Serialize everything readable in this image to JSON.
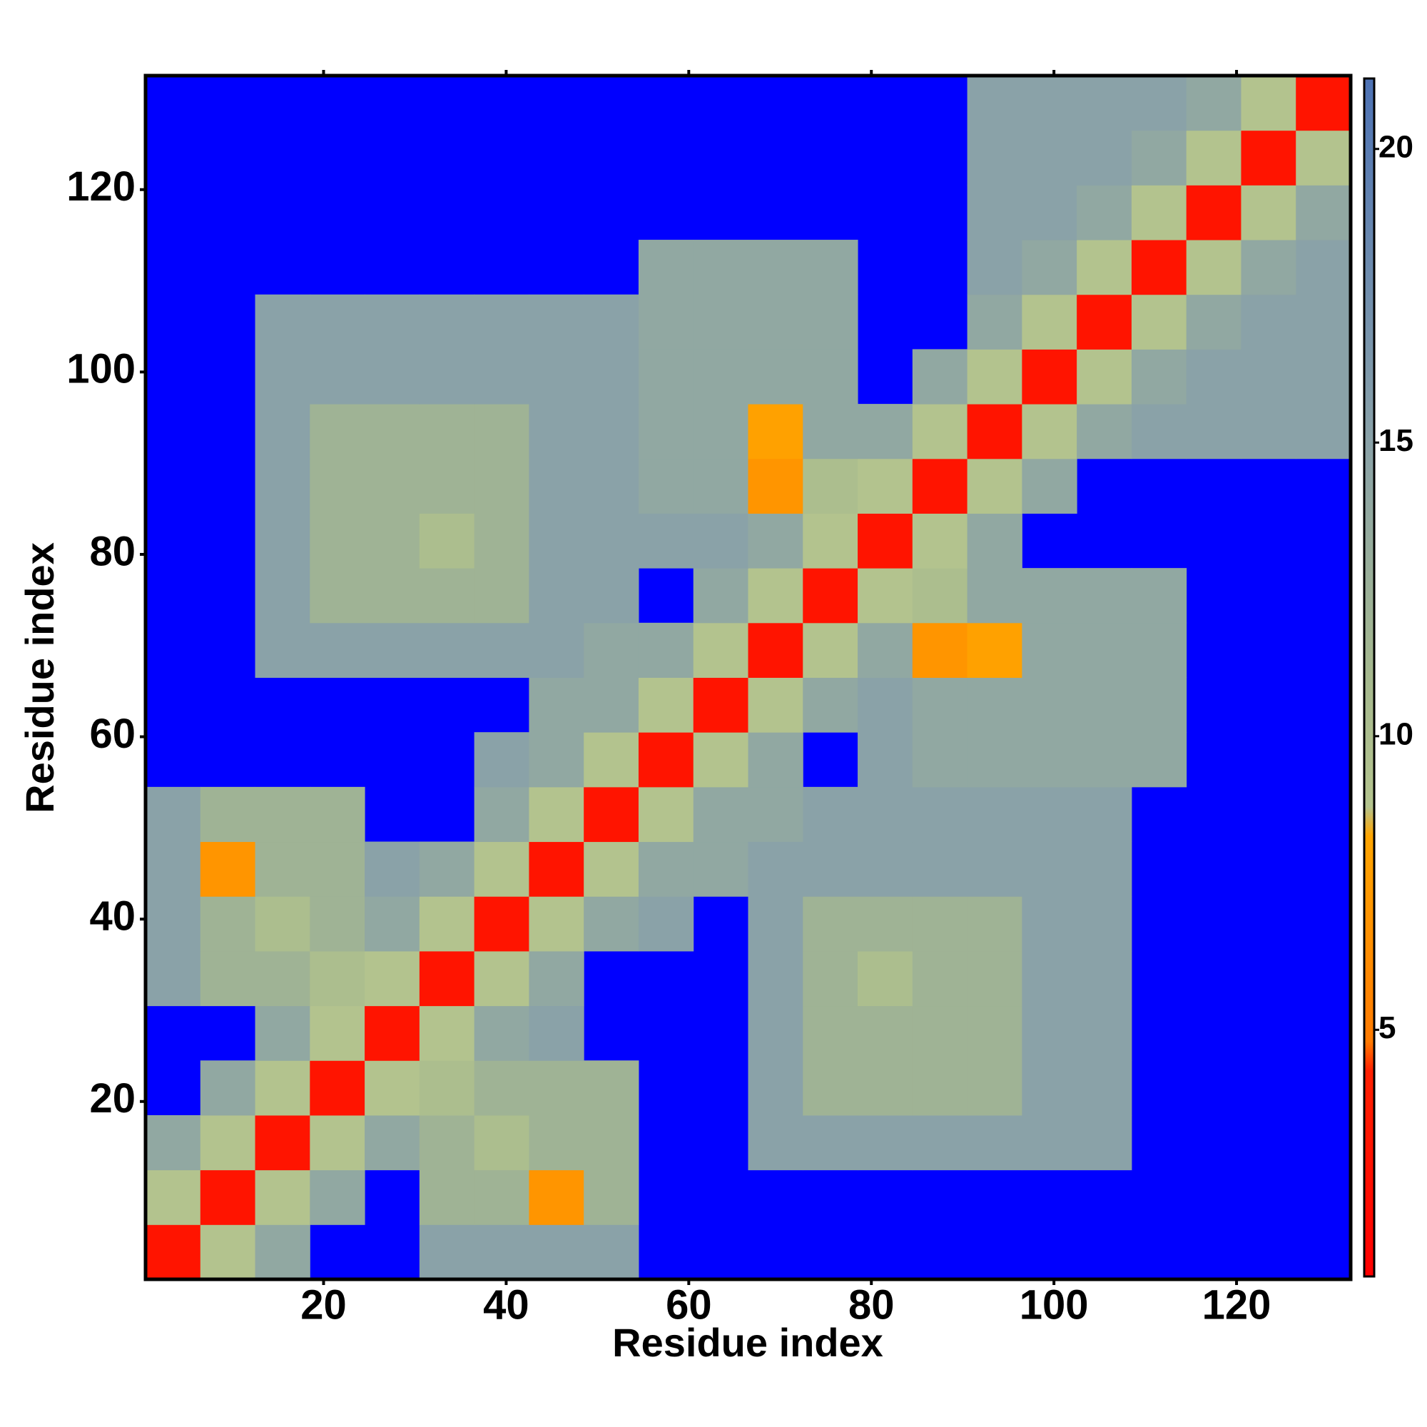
{
  "chart_data": {
    "type": "heatmap",
    "x_label": "Residue index",
    "y_label": "Residue index",
    "x_edges": [
      0.5,
      6.5,
      12.5,
      18.5,
      24.5,
      30.5,
      36.5,
      42.5,
      48.5,
      54.5,
      60.5,
      66.5,
      72.5,
      78.5,
      84.5,
      90.5,
      96.5,
      102.5,
      108.5,
      114.5,
      120.5,
      126.5,
      132.5
    ],
    "y_edges": [
      0.5,
      6.5,
      12.5,
      18.5,
      24.5,
      30.5,
      36.5,
      42.5,
      48.5,
      54.5,
      60.5,
      66.5,
      72.5,
      78.5,
      84.5,
      90.5,
      96.5,
      102.5,
      108.5,
      114.5,
      120.5,
      126.5,
      132.5
    ],
    "xlim": [
      0.5,
      132.5
    ],
    "ylim": [
      0.5,
      132.5
    ],
    "xticks": [
      20,
      40,
      60,
      80,
      100,
      120
    ],
    "yticks": [
      20,
      40,
      60,
      80,
      100,
      120
    ],
    "zlim": [
      0.8,
      21.2
    ],
    "zticks": [
      5,
      10,
      15,
      20
    ],
    "colorscale": [
      [
        0.8,
        "#ff0000"
      ],
      [
        4.3,
        "#ff2000"
      ],
      [
        4.8,
        "#ff7a00"
      ],
      [
        8.3,
        "#ffa500"
      ],
      [
        8.8,
        "#b4c48e"
      ],
      [
        11,
        "#a6b98e"
      ],
      [
        15,
        "#8aa2a8"
      ],
      [
        21.2,
        "#4d72b4"
      ]
    ],
    "na_color": "#0000ff",
    "z": [
      [
        3,
        9,
        14,
        null,
        null,
        15,
        15,
        15,
        15,
        null,
        null,
        null,
        null,
        null,
        null,
        null,
        null,
        null,
        null,
        null,
        null,
        null
      ],
      [
        9,
        3,
        9,
        14,
        null,
        12,
        12,
        7,
        12,
        null,
        null,
        null,
        null,
        null,
        null,
        null,
        null,
        null,
        null,
        null,
        null,
        null
      ],
      [
        14,
        9,
        3,
        9,
        14,
        12,
        10,
        12,
        12,
        null,
        null,
        15,
        15,
        15,
        15,
        15,
        15,
        15,
        null,
        null,
        null,
        null
      ],
      [
        null,
        14,
        9,
        3,
        9,
        10,
        12,
        12,
        12,
        null,
        null,
        15,
        12,
        12,
        12,
        12,
        15,
        15,
        null,
        null,
        null,
        null
      ],
      [
        null,
        null,
        14,
        9,
        3,
        9,
        14,
        15,
        null,
        null,
        null,
        15,
        12,
        12,
        12,
        12,
        15,
        15,
        null,
        null,
        null,
        null
      ],
      [
        15,
        12,
        12,
        10,
        9,
        3,
        9,
        14,
        null,
        null,
        null,
        15,
        12,
        10,
        12,
        12,
        15,
        15,
        null,
        null,
        null,
        null
      ],
      [
        15,
        12,
        10,
        12,
        14,
        9,
        3,
        9,
        14,
        15,
        null,
        15,
        12,
        12,
        12,
        12,
        15,
        15,
        null,
        null,
        null,
        null
      ],
      [
        15,
        7,
        12,
        12,
        15,
        14,
        9,
        3,
        9,
        14,
        14,
        15,
        15,
        15,
        15,
        15,
        15,
        15,
        null,
        null,
        null,
        null
      ],
      [
        15,
        12,
        12,
        12,
        null,
        null,
        14,
        9,
        3,
        9,
        14,
        14,
        15,
        15,
        15,
        15,
        15,
        15,
        null,
        null,
        null,
        null
      ],
      [
        null,
        null,
        null,
        null,
        null,
        null,
        15,
        14,
        9,
        3,
        9,
        14,
        null,
        15,
        14,
        14,
        14,
        14,
        14,
        null,
        null,
        null
      ],
      [
        null,
        null,
        null,
        null,
        null,
        null,
        null,
        14,
        14,
        9,
        3,
        9,
        14,
        15,
        14,
        14,
        14,
        14,
        14,
        null,
        null,
        null
      ],
      [
        null,
        null,
        15,
        15,
        15,
        15,
        15,
        15,
        14,
        14,
        9,
        3,
        9,
        14,
        7,
        8,
        14,
        14,
        14,
        null,
        null,
        null
      ],
      [
        null,
        null,
        15,
        12,
        12,
        12,
        12,
        15,
        15,
        null,
        14,
        9,
        3,
        9,
        10,
        14,
        14,
        14,
        14,
        null,
        null,
        null
      ],
      [
        null,
        null,
        15,
        12,
        12,
        10,
        12,
        15,
        15,
        15,
        15,
        14,
        9,
        3,
        9,
        14,
        null,
        null,
        null,
        null,
        null,
        null
      ],
      [
        null,
        null,
        15,
        12,
        12,
        12,
        12,
        15,
        15,
        14,
        14,
        7,
        10,
        9,
        3,
        9,
        14,
        null,
        null,
        null,
        null,
        null
      ],
      [
        null,
        null,
        15,
        12,
        12,
        12,
        12,
        15,
        15,
        14,
        14,
        8,
        14,
        14,
        9,
        3,
        9,
        14,
        15,
        15,
        15,
        15
      ],
      [
        null,
        null,
        15,
        15,
        15,
        15,
        15,
        15,
        15,
        14,
        14,
        14,
        14,
        null,
        14,
        9,
        3,
        9,
        14,
        15,
        15,
        15
      ],
      [
        null,
        null,
        15,
        15,
        15,
        15,
        15,
        15,
        15,
        14,
        14,
        14,
        14,
        null,
        null,
        14,
        9,
        3,
        9,
        14,
        15,
        15
      ],
      [
        null,
        null,
        null,
        null,
        null,
        null,
        null,
        null,
        null,
        14,
        14,
        14,
        14,
        null,
        null,
        15,
        14,
        9,
        3,
        9,
        14,
        15
      ],
      [
        null,
        null,
        null,
        null,
        null,
        null,
        null,
        null,
        null,
        null,
        null,
        null,
        null,
        null,
        null,
        15,
        15,
        14,
        9,
        3,
        9,
        14
      ],
      [
        null,
        null,
        null,
        null,
        null,
        null,
        null,
        null,
        null,
        null,
        null,
        null,
        null,
        null,
        null,
        15,
        15,
        15,
        14,
        9,
        3,
        9
      ],
      [
        null,
        null,
        null,
        null,
        null,
        null,
        null,
        null,
        null,
        null,
        null,
        null,
        null,
        null,
        null,
        15,
        15,
        15,
        15,
        14,
        9,
        3
      ]
    ]
  }
}
